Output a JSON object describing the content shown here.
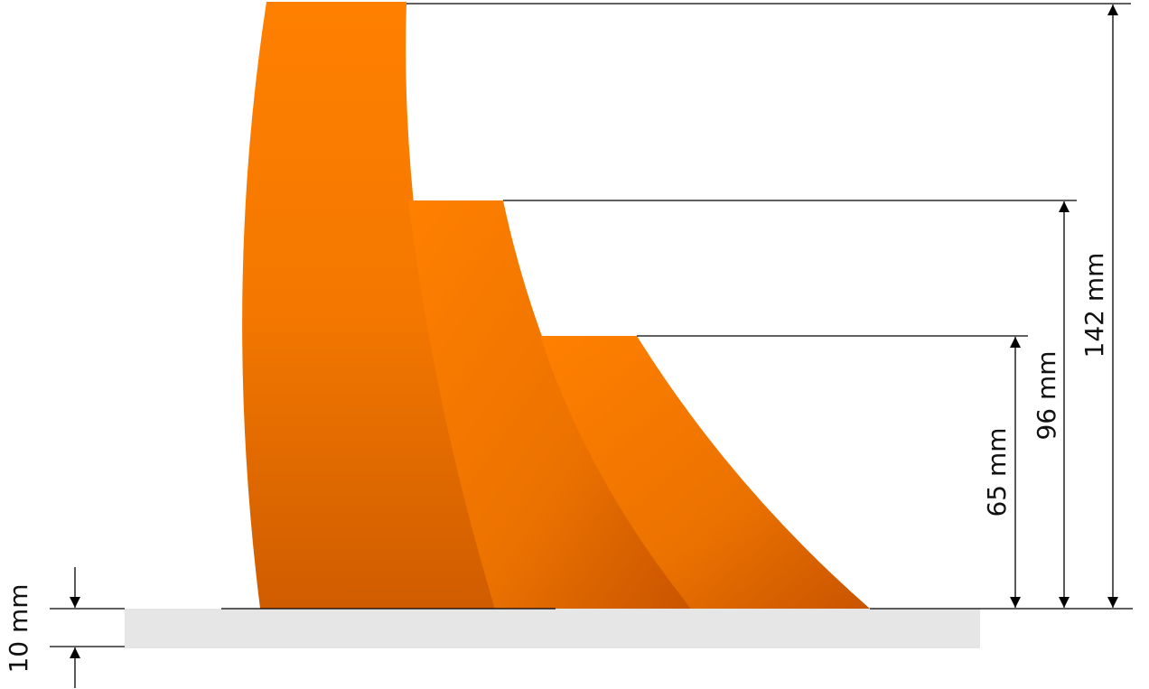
{
  "dimensions": {
    "tall": "142 mm",
    "middle": "96 mm",
    "short": "65 mm",
    "base": "10 mm"
  }
}
